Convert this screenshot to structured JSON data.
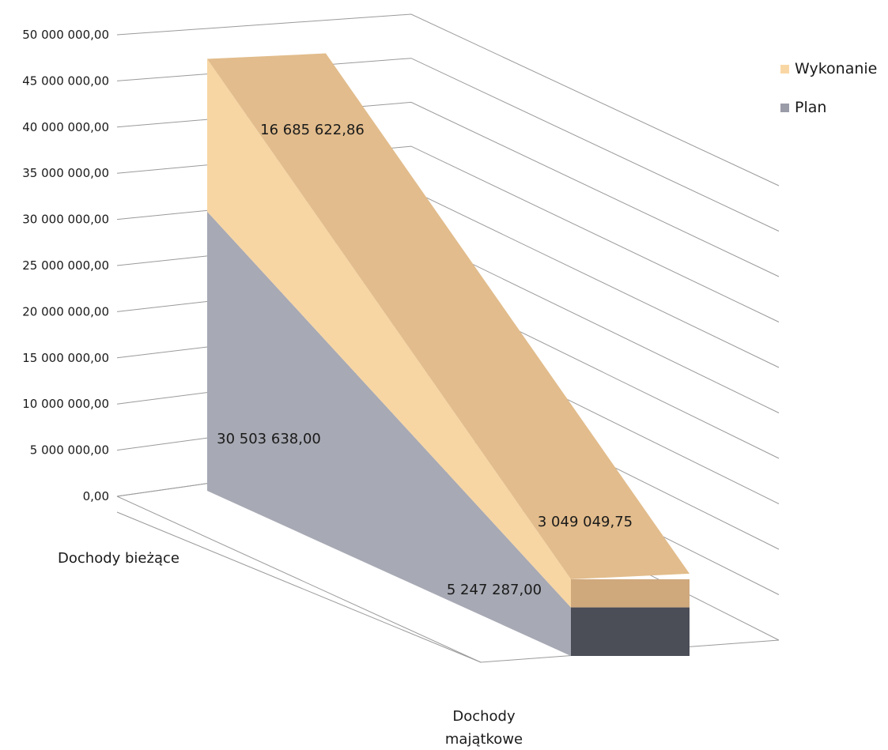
{
  "chart_data": {
    "type": "area",
    "variant": "3d-stacked-area",
    "title": "",
    "categories": [
      "Dochody bieżące",
      "Dochody\nmajątkowe"
    ],
    "series": [
      {
        "name": "Plan",
        "values": [
          30503638.0,
          5247287.0
        ],
        "labels": [
          "30 503 638,00",
          "5 247 287,00"
        ]
      },
      {
        "name": "Wykonanie",
        "values": [
          16685622.86,
          3049049.75
        ],
        "labels": [
          "16 685 622,86",
          "3 049 049,75"
        ]
      }
    ],
    "y_ticks": [
      "0,00",
      "5 000 000,00",
      "10 000 000,00",
      "15 000 000,00",
      "20 000 000,00",
      "25 000 000,00",
      "30 000 000,00",
      "35 000 000,00",
      "40 000 000,00",
      "45 000 000,00",
      "50 000 000,00"
    ],
    "ylim": [
      0,
      50000000
    ],
    "grid": true,
    "legend_position": "top-right",
    "legend": [
      "Wykonanie",
      "Plan"
    ],
    "colors": {
      "Plan_front": "#a7a9b4",
      "Plan_side": "#4b4d57",
      "Plan_top": "#9a9ca8",
      "Wykonanie_front": "#f7d6a4",
      "Wykonanie_top": "#e2bc8c",
      "Wykonanie_side": "#cfa87c",
      "Plan_legend": "#9a9ca8",
      "Wykonanie_legend": "#f9d7a5",
      "grid": "#9a9a9a"
    }
  }
}
